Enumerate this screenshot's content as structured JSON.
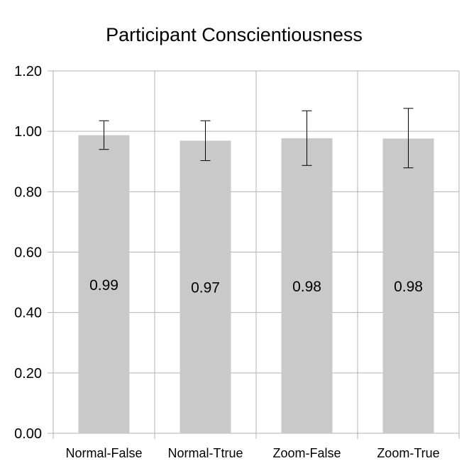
{
  "chart_data": {
    "type": "bar",
    "title": "Participant Conscientiousness",
    "xlabel": "",
    "ylabel": "",
    "categories": [
      "Normal-False",
      "Normal-Ttrue",
      "Zoom-False",
      "Zoom-True"
    ],
    "values": [
      0.987,
      0.969,
      0.977,
      0.976
    ],
    "value_labels": [
      "0.99",
      "0.97",
      "0.98",
      "0.98"
    ],
    "error_bars": {
      "lower": [
        0.94,
        0.903,
        0.887,
        0.879
      ],
      "upper": [
        1.035,
        1.035,
        1.068,
        1.076
      ]
    },
    "ylim": [
      0,
      1.2
    ],
    "yticks": [
      "0.00",
      "0.20",
      "0.40",
      "0.60",
      "0.80",
      "1.00",
      "1.20"
    ],
    "grid": true,
    "legend": "none",
    "colors": {
      "bar": "#c9c9c9",
      "grid": "#b3b3b3",
      "error_bar": "#000000",
      "text": "#000000"
    }
  }
}
